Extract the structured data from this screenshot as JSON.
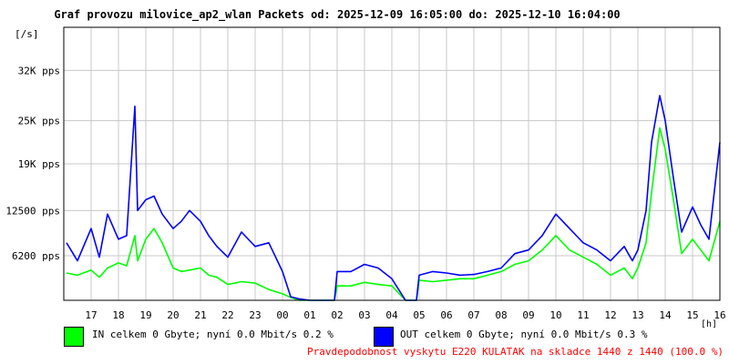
{
  "title": "Graf provozu milovice_ap2_wlan Packets od: 2025-12-09 16:05:00 do: 2025-12-10 16:04:00",
  "legend": {
    "in_label": "IN celkem 0 Gbyte; nyní   0.0 Mbit/s 0.2 %",
    "out_label": "OUT celkem 0 Gbyte; nyní   0.0 Mbit/s 0.3 %"
  },
  "footer": "Pravdepodobnost vyskytu E220 KULATAK na skladce 1440 z 1440 (100.0 %)",
  "colors": {
    "in": "#00ff00",
    "out": "#0000ff",
    "grid": "#c8c8c8",
    "footer": "#ff0000"
  },
  "chart_data": {
    "type": "line",
    "ylabel": "[/s]",
    "xlabel": "[h]",
    "y_ticks": [
      {
        "value": 6200,
        "label": "6200 pps"
      },
      {
        "value": 12500,
        "label": "12500 pps"
      },
      {
        "value": 19000,
        "label": "19K pps"
      },
      {
        "value": 25000,
        "label": "25K pps"
      },
      {
        "value": 32000,
        "label": "32K pps"
      }
    ],
    "ylim": [
      0,
      38000
    ],
    "x_ticks": [
      "17",
      "18",
      "19",
      "20",
      "21",
      "22",
      "23",
      "00",
      "01",
      "02",
      "03",
      "04",
      "05",
      "06",
      "07",
      "08",
      "09",
      "10",
      "11",
      "12",
      "13",
      "14",
      "15",
      "16"
    ],
    "x": [
      16.1,
      16.5,
      17.0,
      17.3,
      17.6,
      18.0,
      18.3,
      18.6,
      18.7,
      19.0,
      19.3,
      19.6,
      20.0,
      20.3,
      20.6,
      21.0,
      21.3,
      21.6,
      22.0,
      22.5,
      23.0,
      23.5,
      24.0,
      24.3,
      24.6,
      25.0,
      25.3,
      25.6,
      25.9,
      26.0,
      26.5,
      27.0,
      27.5,
      28.0,
      28.5,
      28.9,
      29.0,
      29.5,
      30.0,
      30.5,
      31.0,
      31.5,
      32.0,
      32.5,
      33.0,
      33.5,
      34.0,
      34.5,
      35.0,
      35.5,
      36.0,
      36.5,
      36.8,
      37.0,
      37.3,
      37.5,
      37.8,
      38.0,
      38.3,
      38.6,
      39.0,
      39.3,
      39.6,
      40.0
    ],
    "series": [
      {
        "name": "IN",
        "values": [
          3800,
          3500,
          4200,
          3200,
          4500,
          5200,
          4800,
          9000,
          5500,
          8500,
          10000,
          8000,
          4500,
          4000,
          4200,
          4500,
          3500,
          3200,
          2200,
          2600,
          2400,
          1500,
          900,
          400,
          0,
          0,
          0,
          0,
          0,
          2000,
          2000,
          2500,
          2200,
          2000,
          0,
          0,
          2800,
          2600,
          2800,
          3000,
          3000,
          3500,
          4000,
          5000,
          5500,
          7000,
          9000,
          7000,
          6000,
          5000,
          3500,
          4500,
          3000,
          4500,
          8000,
          15000,
          24000,
          21000,
          14000,
          6500,
          8500,
          7000,
          5500,
          11000
        ]
      },
      {
        "name": "OUT",
        "values": [
          8000,
          5500,
          10000,
          6000,
          12000,
          8500,
          9000,
          27000,
          12500,
          14000,
          14500,
          12000,
          10000,
          11000,
          12500,
          11000,
          9000,
          7500,
          6000,
          9500,
          7500,
          8000,
          4000,
          500,
          200,
          0,
          0,
          0,
          0,
          4000,
          4000,
          5000,
          4500,
          3000,
          0,
          0,
          3500,
          4000,
          3800,
          3500,
          3600,
          4000,
          4500,
          6500,
          7000,
          9000,
          12000,
          10000,
          8000,
          7000,
          5500,
          7500,
          5500,
          7000,
          12500,
          22000,
          28500,
          25000,
          17000,
          9500,
          13000,
          10500,
          8500,
          22000
        ]
      }
    ]
  }
}
